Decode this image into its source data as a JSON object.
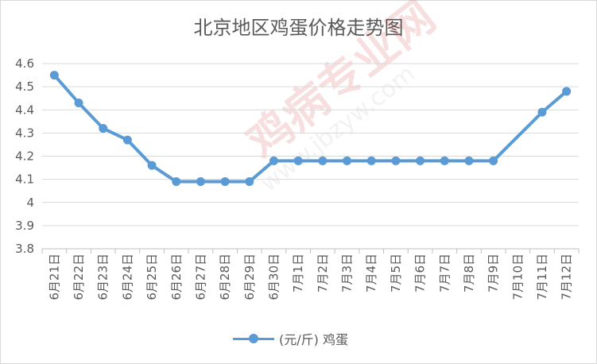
{
  "chart_data": {
    "type": "line",
    "title": "北京地区鸡蛋价格走势图",
    "xlabel": "",
    "ylabel": "",
    "ylim": [
      3.8,
      4.6
    ],
    "yticks": [
      "4.6",
      "4.5",
      "4.4",
      "4.3",
      "4.2",
      "4.1",
      "4",
      "3.9",
      "3.8"
    ],
    "grid": true,
    "legend_position": "bottom",
    "categories": [
      "6月21日",
      "6月22日",
      "6月23日",
      "6月24日",
      "6月25日",
      "6月26日",
      "6月27日",
      "6月28日",
      "6月29日",
      "6月30日",
      "7月1日",
      "7月2日",
      "7月3日",
      "7月4日",
      "7月5日",
      "7月6日",
      "7月7日",
      "7月8日",
      "7月9日",
      "7月10日",
      "7月11日",
      "7月12日"
    ],
    "series": [
      {
        "name": "(元/斤) 鸡蛋",
        "color": "#5b9bd5",
        "values": [
          4.55,
          4.43,
          4.32,
          4.27,
          4.16,
          4.09,
          4.09,
          4.09,
          4.09,
          4.18,
          4.18,
          4.18,
          4.18,
          4.18,
          4.18,
          4.18,
          4.18,
          4.18,
          4.18,
          null,
          4.39,
          4.48
        ]
      }
    ]
  },
  "watermark": {
    "brand": "鸡病专业网",
    "url": "www.jbzyw.com"
  }
}
